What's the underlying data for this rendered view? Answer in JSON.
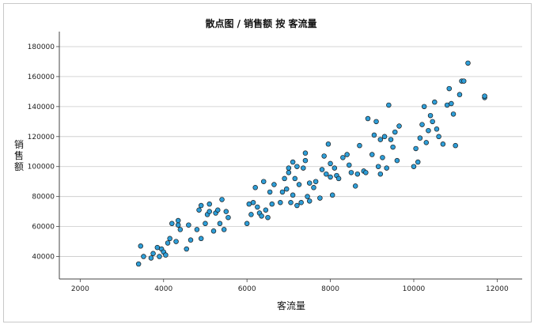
{
  "chart_data": {
    "type": "scatter",
    "title": "散点图 / 销售额 按 客流量",
    "xlabel": "客流量",
    "ylabel": "销售额",
    "xlim": [
      1500,
      12600
    ],
    "ylim": [
      25000,
      190000
    ],
    "xticks": [
      2000,
      4000,
      6000,
      8000,
      10000,
      12000
    ],
    "yticks": [
      40000,
      60000,
      80000,
      100000,
      120000,
      140000,
      160000,
      180000
    ],
    "grid": {
      "x": false,
      "y": true
    },
    "colors": {
      "marker_fill": "#2e9ed8",
      "marker_edge": "#1a1a1a",
      "grid": "#c8c8c8",
      "axis": "#444444"
    },
    "series": [
      {
        "x": [
          3400,
          3450,
          3520,
          3700,
          3750,
          3850,
          3900,
          3950,
          4000,
          4050,
          4100,
          4150,
          4200,
          4300,
          4350,
          4350,
          4400,
          4550,
          4600,
          4650,
          4800,
          4850,
          4900,
          4900,
          5000,
          5050,
          5100,
          5100,
          5200,
          5250,
          5300,
          5350,
          5400,
          5450,
          5500,
          5550,
          6000,
          6050,
          6100,
          6150,
          6200,
          6250,
          6300,
          6350,
          6400,
          6450,
          6500,
          6550,
          6600,
          6650,
          6800,
          6850,
          6900,
          6950,
          7000,
          7000,
          7050,
          7100,
          7100,
          7150,
          7200,
          7200,
          7250,
          7300,
          7350,
          7400,
          7400,
          7450,
          7500,
          7500,
          7600,
          7650,
          7750,
          7800,
          7850,
          7900,
          7950,
          8000,
          8000,
          8050,
          8100,
          8150,
          8200,
          8300,
          8400,
          8450,
          8500,
          8600,
          8650,
          8700,
          8800,
          8850,
          8900,
          9000,
          9050,
          9100,
          9150,
          9200,
          9200,
          9250,
          9300,
          9350,
          9400,
          9450,
          9500,
          9550,
          9600,
          9650,
          10000,
          10050,
          10100,
          10150,
          10200,
          10250,
          10300,
          10350,
          10400,
          10450,
          10500,
          10550,
          10600,
          10700,
          10800,
          10850,
          10900,
          10950,
          11000,
          11100,
          11150,
          11200,
          11300,
          11700,
          11700
        ],
        "y": [
          35000,
          47000,
          40000,
          39000,
          42000,
          46000,
          40000,
          45000,
          43000,
          41000,
          49000,
          52000,
          62000,
          50000,
          61000,
          64000,
          58000,
          45000,
          61000,
          51000,
          58000,
          71000,
          74000,
          52000,
          62000,
          68000,
          70000,
          75000,
          57000,
          69000,
          71000,
          62000,
          78000,
          58000,
          70000,
          66000,
          62000,
          75000,
          68000,
          76000,
          86000,
          73000,
          69000,
          67000,
          90000,
          71000,
          66000,
          83000,
          75000,
          88000,
          76000,
          83000,
          92000,
          85000,
          96000,
          99000,
          76000,
          81000,
          103000,
          92000,
          74000,
          100000,
          88000,
          76000,
          99000,
          104000,
          109000,
          80000,
          89000,
          77000,
          86000,
          90000,
          79000,
          98000,
          107000,
          95000,
          115000,
          102000,
          93000,
          81000,
          99000,
          94000,
          92000,
          106000,
          108000,
          101000,
          96000,
          87000,
          95000,
          114000,
          97000,
          96000,
          132000,
          108000,
          121000,
          130000,
          100000,
          95000,
          118000,
          106000,
          120000,
          99000,
          141000,
          118000,
          113000,
          123000,
          104000,
          127000,
          100000,
          112000,
          103000,
          119000,
          128000,
          140000,
          116000,
          124000,
          134000,
          130000,
          143000,
          125000,
          120000,
          115000,
          141000,
          152000,
          142000,
          135000,
          114000,
          148000,
          157000,
          157000,
          169000,
          146000,
          147000
        ]
      }
    ]
  }
}
